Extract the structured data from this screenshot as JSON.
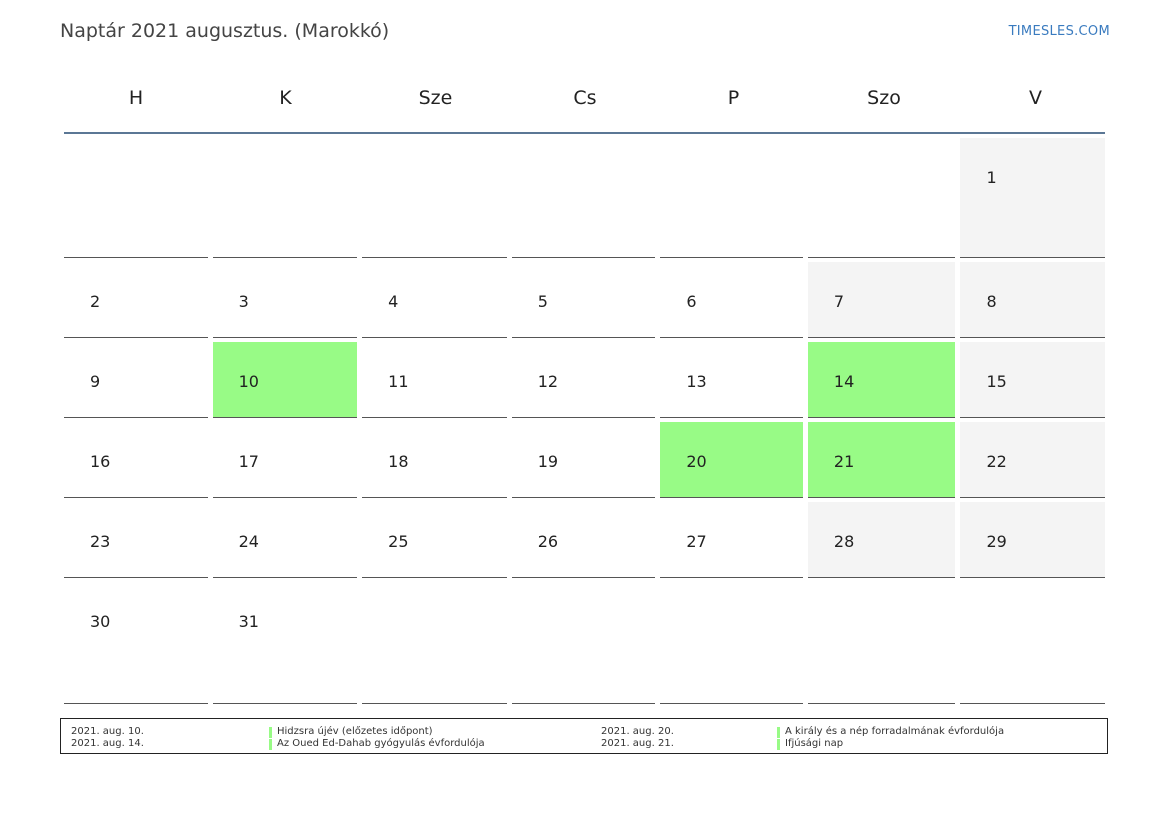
{
  "header": {
    "title": "Naptár 2021 augusztus. (Marokkó)",
    "brand": "TIMESLES.COM"
  },
  "weekdays": [
    "H",
    "K",
    "Sze",
    "Cs",
    "P",
    "Szo",
    "V"
  ],
  "colors": {
    "holiday": "#98fb86",
    "weekend": "#f4f4f4",
    "header_rule": "#5b7795",
    "brand": "#3a7bbf"
  },
  "weeks": [
    [
      {
        "day": "",
        "type": "empty"
      },
      {
        "day": "",
        "type": "empty"
      },
      {
        "day": "",
        "type": "empty"
      },
      {
        "day": "",
        "type": "empty"
      },
      {
        "day": "",
        "type": "empty"
      },
      {
        "day": "",
        "type": "empty"
      },
      {
        "day": "1",
        "type": "weekend"
      }
    ],
    [
      {
        "day": "2",
        "type": "normal"
      },
      {
        "day": "3",
        "type": "normal"
      },
      {
        "day": "4",
        "type": "normal"
      },
      {
        "day": "5",
        "type": "normal"
      },
      {
        "day": "6",
        "type": "normal"
      },
      {
        "day": "7",
        "type": "weekend"
      },
      {
        "day": "8",
        "type": "weekend"
      }
    ],
    [
      {
        "day": "9",
        "type": "normal"
      },
      {
        "day": "10",
        "type": "holiday"
      },
      {
        "day": "11",
        "type": "normal"
      },
      {
        "day": "12",
        "type": "normal"
      },
      {
        "day": "13",
        "type": "normal"
      },
      {
        "day": "14",
        "type": "holiday"
      },
      {
        "day": "15",
        "type": "weekend"
      }
    ],
    [
      {
        "day": "16",
        "type": "normal"
      },
      {
        "day": "17",
        "type": "normal"
      },
      {
        "day": "18",
        "type": "normal"
      },
      {
        "day": "19",
        "type": "normal"
      },
      {
        "day": "20",
        "type": "holiday"
      },
      {
        "day": "21",
        "type": "holiday"
      },
      {
        "day": "22",
        "type": "weekend"
      }
    ],
    [
      {
        "day": "23",
        "type": "normal"
      },
      {
        "day": "24",
        "type": "normal"
      },
      {
        "day": "25",
        "type": "normal"
      },
      {
        "day": "26",
        "type": "normal"
      },
      {
        "day": "27",
        "type": "normal"
      },
      {
        "day": "28",
        "type": "weekend"
      },
      {
        "day": "29",
        "type": "weekend"
      }
    ],
    [
      {
        "day": "30",
        "type": "normal"
      },
      {
        "day": "31",
        "type": "normal"
      },
      {
        "day": "",
        "type": "empty"
      },
      {
        "day": "",
        "type": "empty"
      },
      {
        "day": "",
        "type": "empty"
      },
      {
        "day": "",
        "type": "empty"
      },
      {
        "day": "",
        "type": "empty"
      }
    ]
  ],
  "holidays": [
    {
      "date": "2021. aug. 10.",
      "name": "Hidzsra újév (előzetes időpont)"
    },
    {
      "date": "2021. aug. 14.",
      "name": "Az Oued Ed-Dahab gyógyulás évfordulója"
    },
    {
      "date": "2021. aug. 20.",
      "name": "A király és a nép forradalmának évfordulója"
    },
    {
      "date": "2021. aug. 21.",
      "name": "Ifjúsági nap"
    }
  ]
}
